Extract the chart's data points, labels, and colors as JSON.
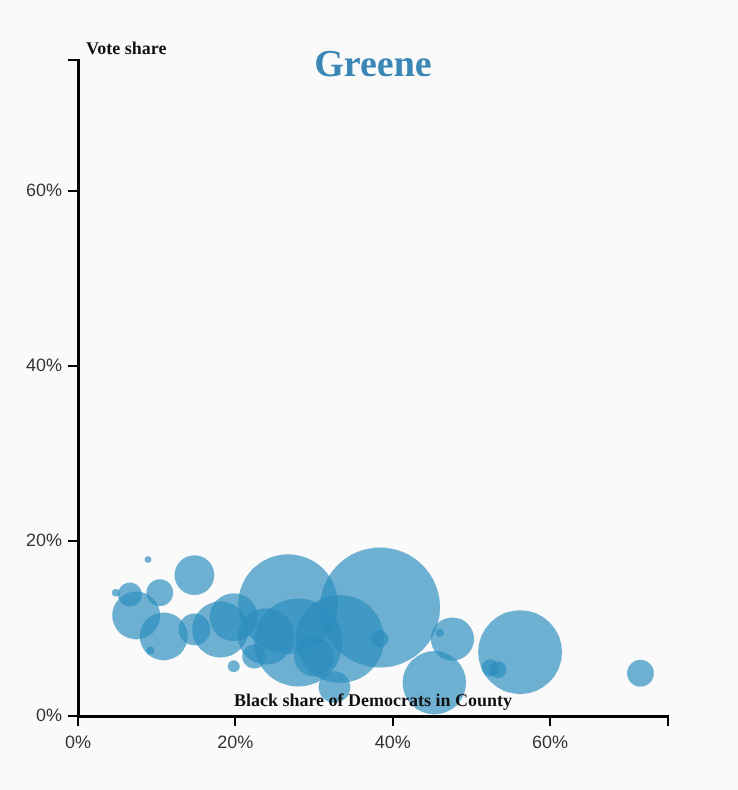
{
  "chart_data": {
    "type": "bubble",
    "title": "Greene",
    "xlabel": "Black share of Democrats in County",
    "ylabel": "Vote share",
    "xlim": [
      0,
      75
    ],
    "ylim": [
      0,
      75
    ],
    "xticks": [
      {
        "value": 0,
        "label": "0%"
      },
      {
        "value": 20,
        "label": "20%"
      },
      {
        "value": 40,
        "label": "40%"
      },
      {
        "value": 60,
        "label": "60%"
      },
      {
        "value": 75,
        "label": null
      }
    ],
    "yticks": [
      {
        "value": 0,
        "label": "0%"
      },
      {
        "value": 20,
        "label": "20%"
      },
      {
        "value": 40,
        "label": "40%"
      },
      {
        "value": 60,
        "label": "60%"
      },
      {
        "value": 75,
        "label": null
      }
    ],
    "grid": false,
    "legend": false,
    "marker": "circle",
    "series": [
      {
        "color": "#2b8cbe",
        "x": [
          38.4,
          26.7,
          56.2,
          71.5,
          47.6,
          45.3,
          46,
          52.4,
          53.4,
          38.4,
          33.3,
          28,
          14.8,
          8.9,
          4.8,
          6.6,
          10.4,
          7.4,
          10.9,
          9.2,
          18.1,
          19.8,
          14.8,
          19.8,
          22.4,
          23.9,
          30,
          32.6
        ],
        "values": [
          12.4,
          12.8,
          7.3,
          4.9,
          8.8,
          3.8,
          9.5,
          5.5,
          5.3,
          8.8,
          8.8,
          8.4,
          16.1,
          17.9,
          14.1,
          13.9,
          14.1,
          11.5,
          9.1,
          7.5,
          9.9,
          11.3,
          9.9,
          5.7,
          6.8,
          9.1,
          6.8,
          3.3
        ],
        "sizes": [
          1,
          0.69,
          0.49,
          0.05,
          0.13,
          0.28,
          0.004,
          0.02,
          0.02,
          0.02,
          0.54,
          0.54,
          0.11,
          0.003,
          0.004,
          0.04,
          0.05,
          0.16,
          0.16,
          0.004,
          0.22,
          0.16,
          0.07,
          0.01,
          0.04,
          0.22,
          0.11,
          0.07
        ]
      }
    ]
  }
}
